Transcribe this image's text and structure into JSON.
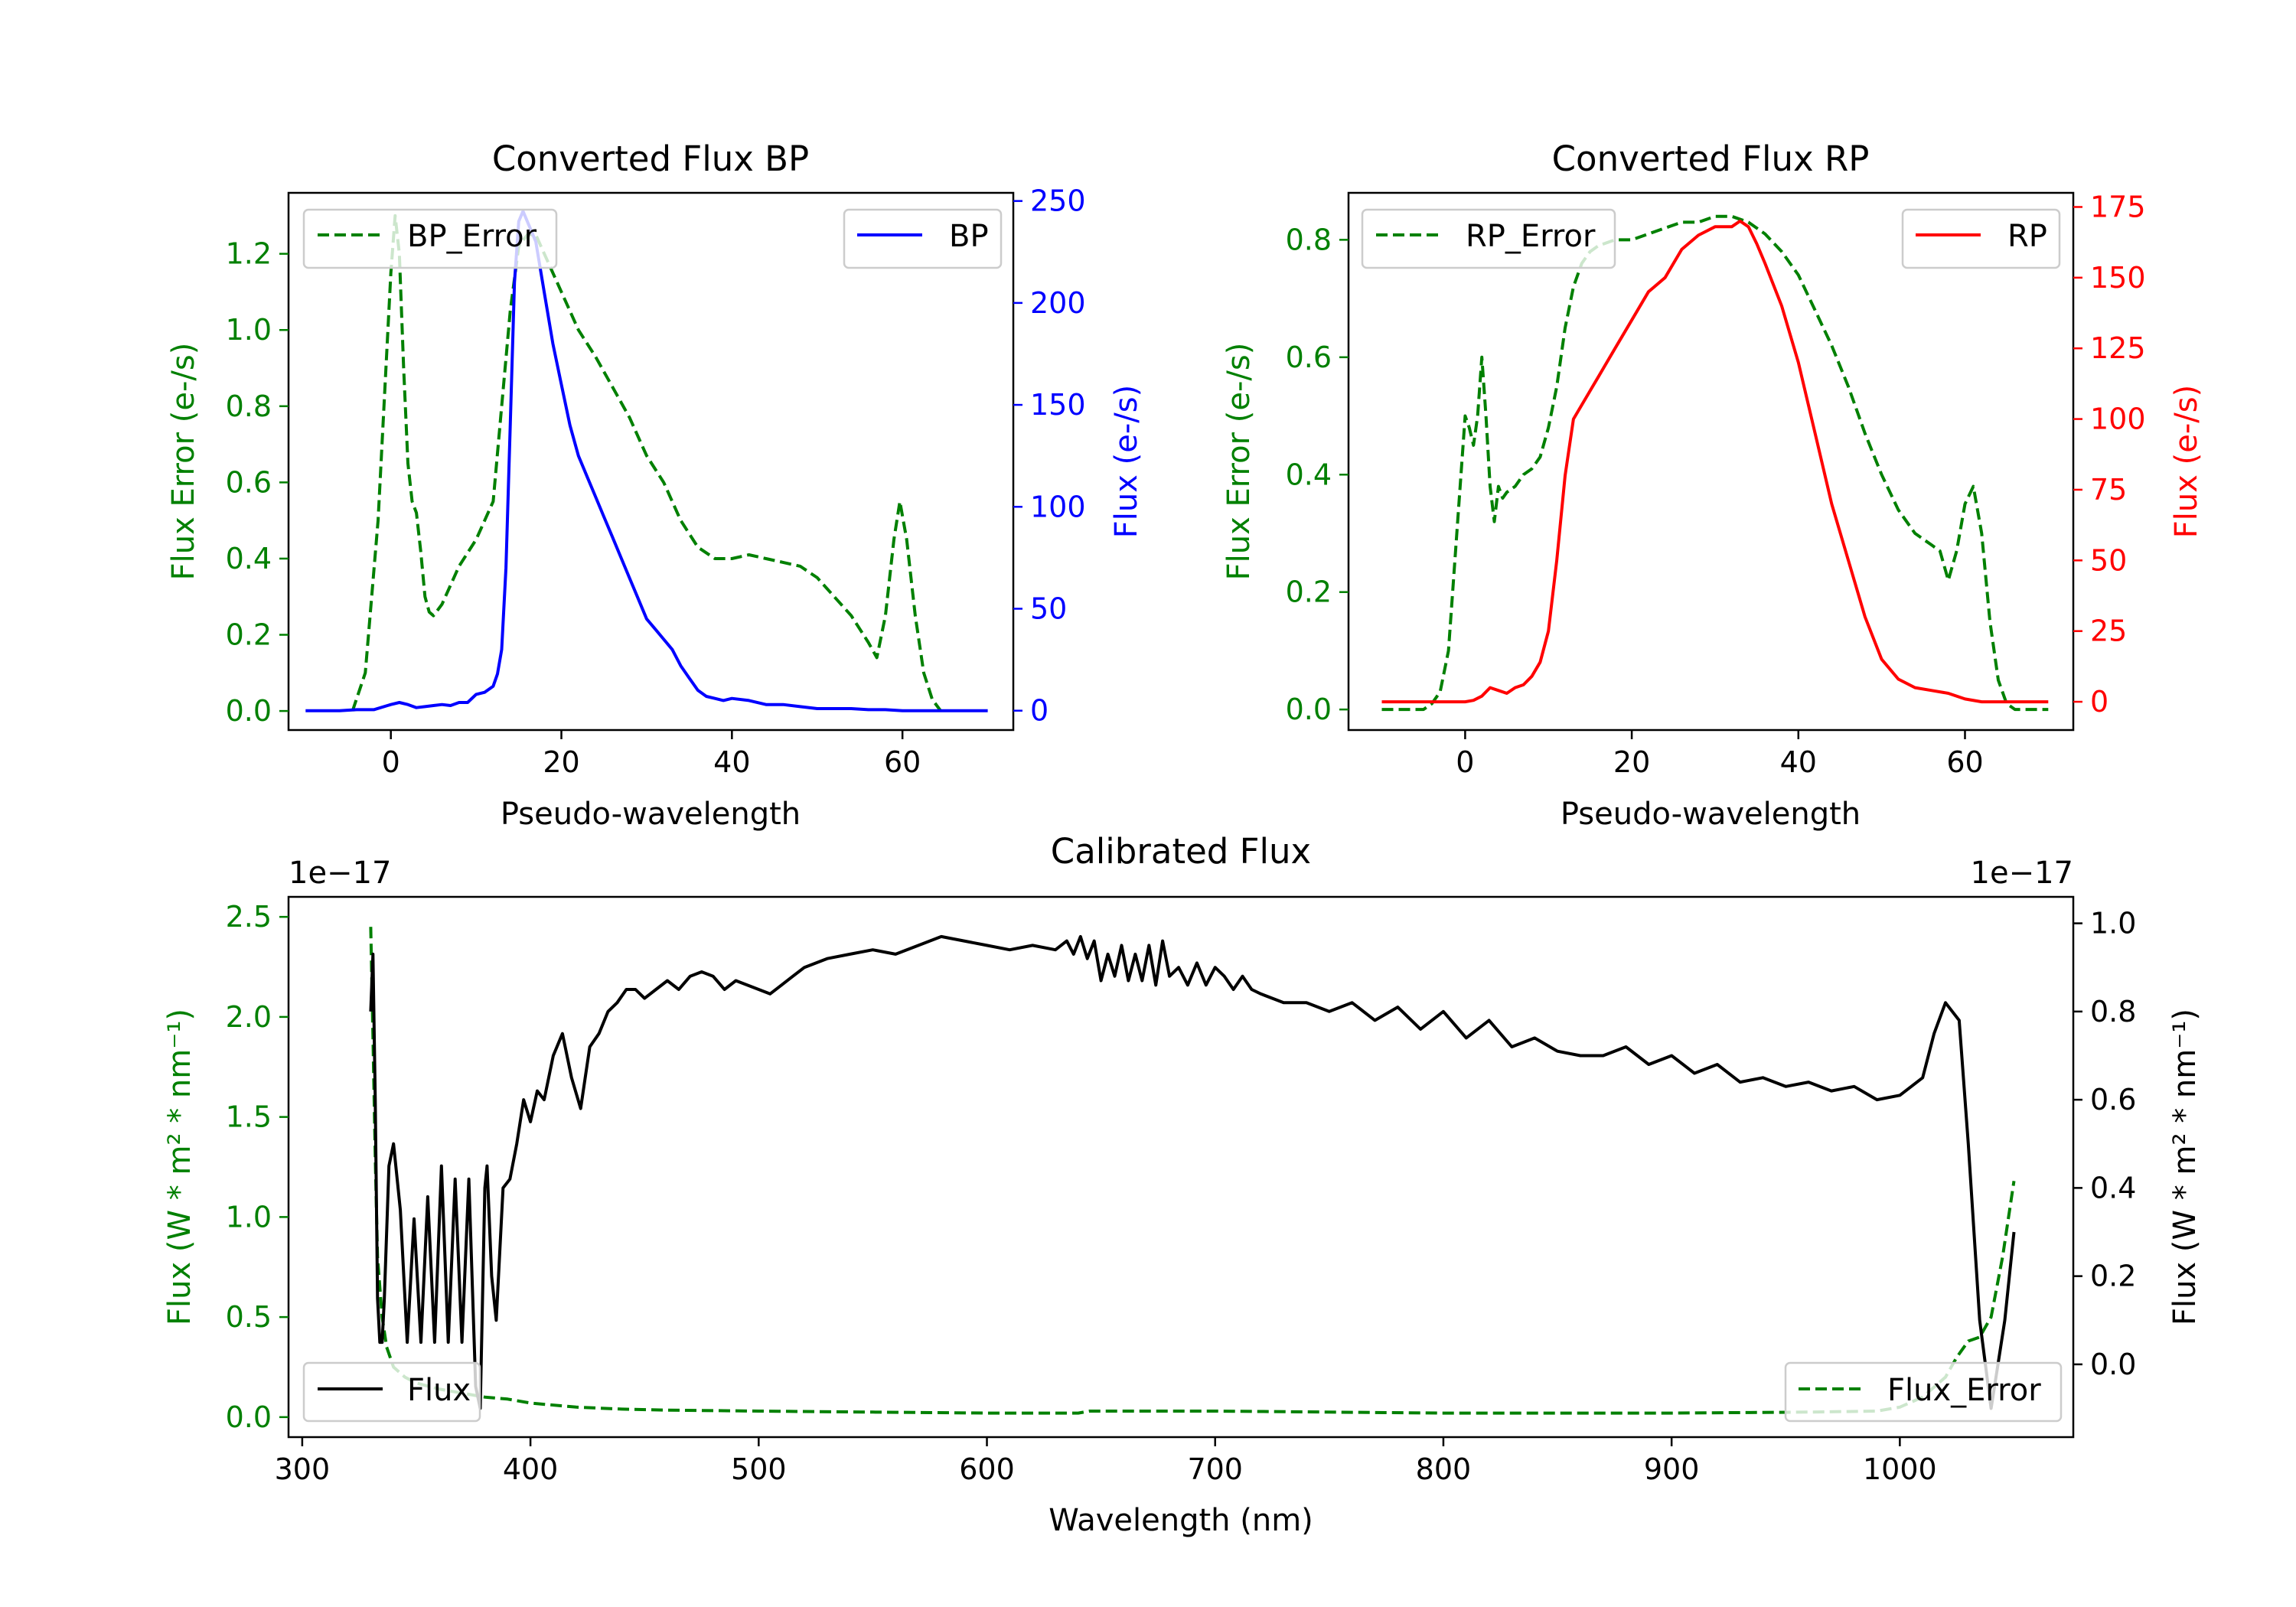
{
  "chart_data": [
    {
      "type": "line",
      "title": "Converted Flux BP",
      "xlabel": "Pseudo-wavelength",
      "ylabel_left": "Flux Error (e-/s)",
      "ylabel_right": "Flux (e-/s)",
      "xlim": [
        -12,
        73
      ],
      "ylim_left": [
        -0.05,
        1.36
      ],
      "ylim_right": [
        -9.5,
        254
      ],
      "xticks": [
        0,
        20,
        40,
        60
      ],
      "yticks_left": [
        0.0,
        0.2,
        0.4,
        0.6,
        0.8,
        1.0,
        1.2
      ],
      "yticks_right": [
        0,
        50,
        100,
        150,
        200,
        250
      ],
      "legend_left": {
        "label": "BP_Error",
        "position": "upper left"
      },
      "legend_right": {
        "label": "BP",
        "position": "upper right"
      },
      "colors": {
        "left": "#008000",
        "right": "#0000ff"
      },
      "series": [
        {
          "name": "BP_Error",
          "axis": "left",
          "style": "dashed",
          "color": "#008000",
          "x": [
            -4.5,
            -3,
            -1.5,
            0,
            0.5,
            1,
            1.5,
            2,
            2.5,
            3,
            3.5,
            4,
            4.5,
            5,
            6,
            8,
            10,
            12,
            13,
            14,
            15,
            16,
            17,
            18,
            20,
            22,
            24,
            26,
            28,
            30,
            32,
            34,
            36,
            38,
            40,
            42,
            44,
            46,
            48,
            50,
            52,
            54,
            56,
            57,
            58,
            59,
            59.7,
            60.5,
            61.5,
            62.5,
            63.5,
            64.5
          ],
          "y": [
            0.0,
            0.1,
            0.5,
            1.15,
            1.3,
            1.2,
            0.9,
            0.65,
            0.55,
            0.52,
            0.42,
            0.3,
            0.26,
            0.25,
            0.28,
            0.38,
            0.45,
            0.55,
            0.8,
            1.05,
            1.22,
            1.25,
            1.25,
            1.2,
            1.1,
            1.0,
            0.93,
            0.85,
            0.77,
            0.67,
            0.6,
            0.5,
            0.43,
            0.4,
            0.4,
            0.41,
            0.4,
            0.39,
            0.38,
            0.35,
            0.3,
            0.25,
            0.18,
            0.14,
            0.25,
            0.45,
            0.55,
            0.45,
            0.25,
            0.1,
            0.03,
            0.0
          ]
        },
        {
          "name": "BP",
          "axis": "right",
          "style": "solid",
          "color": "#0000ff",
          "x": [
            -10,
            -6,
            -4,
            -2,
            0,
            1,
            2,
            3,
            4,
            5,
            6,
            7,
            8,
            9,
            10,
            11,
            12,
            12.5,
            13,
            13.5,
            14,
            14.5,
            15,
            15.5,
            16,
            17,
            18,
            19,
            20,
            21,
            22,
            23,
            24,
            25,
            26,
            27,
            28,
            29,
            30,
            31,
            32,
            33,
            34,
            35,
            36,
            37,
            38,
            39,
            40,
            42,
            44,
            46,
            48,
            50,
            52,
            54,
            56,
            58,
            60,
            62,
            64,
            66,
            68,
            70
          ],
          "y": [
            0,
            0,
            0.5,
            0.5,
            3,
            4,
            3,
            1.5,
            2,
            2.5,
            3,
            2.5,
            4,
            4,
            8,
            9,
            12,
            18,
            30,
            70,
            140,
            210,
            240,
            245,
            240,
            230,
            205,
            180,
            160,
            140,
            125,
            115,
            105,
            95,
            85,
            75,
            65,
            55,
            45,
            40,
            35,
            30,
            22,
            16,
            10,
            7,
            6,
            5,
            6,
            5,
            3,
            3,
            2,
            1,
            1,
            1,
            0.5,
            0.5,
            0,
            0,
            0,
            0,
            0,
            0
          ]
        }
      ]
    },
    {
      "type": "line",
      "title": "Converted Flux RP",
      "xlabel": "Pseudo-wavelength",
      "ylabel_left": "Flux Error (e-/s)",
      "ylabel_right": "Flux (e-/s)",
      "xlim": [
        -14,
        73
      ],
      "ylim_left": [
        -0.035,
        0.88
      ],
      "ylim_right": [
        -10,
        180
      ],
      "xticks": [
        0,
        20,
        40,
        60
      ],
      "yticks_left": [
        0.0,
        0.2,
        0.4,
        0.6,
        0.8
      ],
      "yticks_right": [
        0,
        25,
        50,
        75,
        100,
        125,
        150,
        175
      ],
      "legend_left": {
        "label": "RP_Error",
        "position": "upper left"
      },
      "legend_right": {
        "label": "RP",
        "position": "upper right"
      },
      "colors": {
        "left": "#008000",
        "right": "#ff0000"
      },
      "series": [
        {
          "name": "RP_Error",
          "axis": "left",
          "style": "dashed",
          "color": "#008000",
          "x": [
            -10,
            -5,
            -4,
            -3,
            -2,
            -1,
            0,
            0.5,
            1,
            1.5,
            2,
            2.5,
            3,
            3.5,
            4,
            4.5,
            5,
            6,
            7,
            8,
            9,
            10,
            11,
            12,
            13,
            14,
            15,
            16,
            18,
            20,
            22,
            24,
            26,
            28,
            30,
            32,
            34,
            36,
            38,
            40,
            42,
            44,
            46,
            48,
            50,
            52,
            54,
            56,
            57,
            58,
            59,
            60,
            61,
            62,
            63,
            64,
            65,
            66,
            68,
            70
          ],
          "y": [
            0,
            0,
            0.01,
            0.03,
            0.1,
            0.3,
            0.5,
            0.48,
            0.45,
            0.5,
            0.6,
            0.5,
            0.38,
            0.32,
            0.38,
            0.36,
            0.37,
            0.38,
            0.4,
            0.41,
            0.43,
            0.48,
            0.55,
            0.65,
            0.72,
            0.76,
            0.78,
            0.79,
            0.8,
            0.8,
            0.81,
            0.82,
            0.83,
            0.83,
            0.84,
            0.84,
            0.83,
            0.81,
            0.78,
            0.74,
            0.68,
            0.62,
            0.55,
            0.47,
            0.4,
            0.34,
            0.3,
            0.28,
            0.27,
            0.22,
            0.27,
            0.35,
            0.38,
            0.3,
            0.15,
            0.05,
            0.01,
            0,
            0,
            0
          ]
        },
        {
          "name": "RP",
          "axis": "right",
          "style": "solid",
          "color": "#ff0000",
          "x": [
            -10,
            -4,
            0,
            1,
            2,
            3,
            4,
            5,
            6,
            7,
            8,
            9,
            10,
            11,
            12,
            13,
            14,
            15,
            16,
            17,
            18,
            20,
            22,
            24,
            26,
            28,
            30,
            32,
            33,
            34,
            35,
            36,
            38,
            40,
            42,
            44,
            46,
            48,
            50,
            52,
            54,
            56,
            58,
            60,
            62,
            64,
            66,
            68,
            70
          ],
          "y": [
            0,
            0,
            0,
            0.5,
            2,
            5,
            4,
            3,
            5,
            6,
            9,
            14,
            25,
            50,
            80,
            100,
            105,
            110,
            115,
            120,
            125,
            135,
            145,
            150,
            160,
            165,
            168,
            168,
            170,
            168,
            162,
            155,
            140,
            120,
            95,
            70,
            50,
            30,
            15,
            8,
            5,
            4,
            3,
            1,
            0,
            0,
            0,
            0,
            0
          ]
        }
      ]
    },
    {
      "type": "line",
      "title": "Calibrated Flux",
      "xlabel": "Wavelength (nm)",
      "ylabel_left": "Flux (W * m² * nm⁻¹)",
      "ylabel_right": "Flux (W * m² * nm⁻¹)",
      "offset_left": "1e−17",
      "offset_right": "1e−17",
      "xlim": [
        294,
        1076
      ],
      "ylim_left": [
        -0.1,
        2.6
      ],
      "ylim_right": [
        -0.165,
        1.06
      ],
      "xticks": [
        300,
        400,
        500,
        600,
        700,
        800,
        900,
        1000
      ],
      "yticks_left": [
        0.0,
        0.5,
        1.0,
        1.5,
        2.0,
        2.5
      ],
      "yticks_right": [
        0.0,
        0.2,
        0.4,
        0.6,
        0.8,
        1.0
      ],
      "legend_left": {
        "label": "Flux",
        "position": "lower left"
      },
      "legend_right": {
        "label": "Flux_Error",
        "position": "lower right"
      },
      "colors": {
        "left": "#008000",
        "right": "#000000"
      },
      "series": [
        {
          "name": "Flux_Error",
          "axis": "left",
          "style": "dashed",
          "color": "#008000",
          "x": [
            330,
            331,
            332,
            333,
            335,
            337,
            340,
            345,
            350,
            360,
            370,
            380,
            390,
            400,
            420,
            440,
            460,
            500,
            550,
            600,
            640,
            645,
            700,
            800,
            900,
            960,
            990,
            1000,
            1010,
            1020,
            1025,
            1030,
            1035,
            1040,
            1045,
            1050
          ],
          "y": [
            2.45,
            1.9,
            1.3,
            0.8,
            0.5,
            0.35,
            0.25,
            0.2,
            0.17,
            0.14,
            0.12,
            0.1,
            0.09,
            0.07,
            0.05,
            0.04,
            0.035,
            0.03,
            0.025,
            0.02,
            0.02,
            0.03,
            0.03,
            0.02,
            0.02,
            0.025,
            0.03,
            0.05,
            0.1,
            0.2,
            0.3,
            0.38,
            0.4,
            0.5,
            0.8,
            1.18
          ]
        },
        {
          "name": "Flux",
          "axis": "right",
          "style": "solid",
          "color": "#000000",
          "x": [
            330,
            331,
            332,
            333,
            334,
            335,
            336,
            338,
            340,
            343,
            346,
            349,
            352,
            355,
            358,
            361,
            364,
            367,
            370,
            373,
            376,
            378,
            380,
            381,
            383,
            385,
            388,
            391,
            394,
            397,
            400,
            403,
            406,
            410,
            414,
            418,
            422,
            426,
            430,
            434,
            438,
            442,
            446,
            450,
            455,
            460,
            465,
            470,
            475,
            480,
            485,
            490,
            495,
            500,
            505,
            510,
            515,
            520,
            530,
            540,
            550,
            560,
            570,
            580,
            590,
            600,
            610,
            620,
            630,
            635,
            638,
            641,
            644,
            647,
            650,
            653,
            656,
            659,
            662,
            665,
            668,
            671,
            674,
            677,
            680,
            684,
            688,
            692,
            696,
            700,
            704,
            708,
            712,
            716,
            720,
            730,
            740,
            750,
            760,
            770,
            780,
            790,
            800,
            810,
            820,
            830,
            840,
            850,
            860,
            870,
            880,
            890,
            900,
            910,
            920,
            930,
            940,
            950,
            960,
            970,
            980,
            990,
            1000,
            1010,
            1015,
            1020,
            1023,
            1026,
            1030,
            1035,
            1040,
            1043,
            1046,
            1048,
            1050
          ],
          "y": [
            0.8,
            0.93,
            0.6,
            0.15,
            0.05,
            0.05,
            0.15,
            0.45,
            0.5,
            0.35,
            0.05,
            0.33,
            0.05,
            0.38,
            0.05,
            0.45,
            0.05,
            0.42,
            0.05,
            0.42,
            -0.05,
            -0.1,
            0.4,
            0.45,
            0.2,
            0.1,
            0.4,
            0.42,
            0.5,
            0.6,
            0.55,
            0.62,
            0.6,
            0.7,
            0.75,
            0.65,
            0.58,
            0.72,
            0.75,
            0.8,
            0.82,
            0.85,
            0.85,
            0.83,
            0.85,
            0.87,
            0.85,
            0.88,
            0.89,
            0.88,
            0.85,
            0.87,
            0.86,
            0.85,
            0.84,
            0.86,
            0.88,
            0.9,
            0.92,
            0.93,
            0.94,
            0.93,
            0.95,
            0.97,
            0.96,
            0.95,
            0.94,
            0.95,
            0.94,
            0.96,
            0.93,
            0.97,
            0.92,
            0.96,
            0.87,
            0.93,
            0.88,
            0.95,
            0.87,
            0.93,
            0.87,
            0.95,
            0.86,
            0.96,
            0.88,
            0.9,
            0.86,
            0.91,
            0.86,
            0.9,
            0.88,
            0.85,
            0.88,
            0.85,
            0.84,
            0.82,
            0.82,
            0.8,
            0.82,
            0.78,
            0.81,
            0.76,
            0.8,
            0.74,
            0.78,
            0.72,
            0.74,
            0.71,
            0.7,
            0.7,
            0.72,
            0.68,
            0.7,
            0.66,
            0.68,
            0.64,
            0.65,
            0.63,
            0.64,
            0.62,
            0.63,
            0.6,
            0.61,
            0.65,
            0.75,
            0.82,
            0.8,
            0.78,
            0.5,
            0.1,
            -0.1,
            0.0,
            0.1,
            0.2,
            0.3
          ]
        }
      ]
    }
  ]
}
